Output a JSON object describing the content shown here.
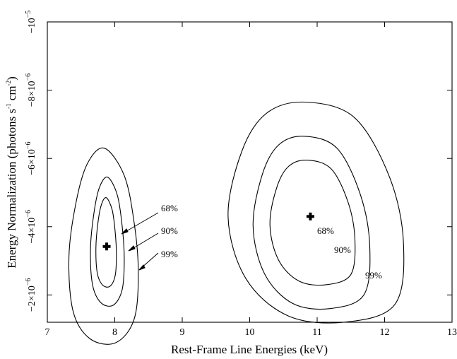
{
  "chart_data": {
    "type": "contour",
    "xlabel": "Rest-Frame Line Energies (keV)",
    "ylabel_main": "Energy Normalization (photons s",
    "ylabel_sup1": "-1",
    "ylabel_mid": " cm",
    "ylabel_sup2": "-2",
    "ylabel_end": ")",
    "xlim": [
      7,
      13
    ],
    "ylim": [
      -1.2e-06,
      -1e-05
    ],
    "x_ticks": [
      {
        "value": 7,
        "label": "7"
      },
      {
        "value": 8,
        "label": "8"
      },
      {
        "value": 9,
        "label": "9"
      },
      {
        "value": 10,
        "label": "10"
      },
      {
        "value": 11,
        "label": "11"
      },
      {
        "value": 12,
        "label": "12"
      },
      {
        "value": 13,
        "label": "13"
      }
    ],
    "y_ticks": [
      {
        "value": -2e-06,
        "mant": "−2×10",
        "exp": "−6"
      },
      {
        "value": -4e-06,
        "mant": "−4×10",
        "exp": "−6"
      },
      {
        "value": -6e-06,
        "mant": "−6×10",
        "exp": "−6"
      },
      {
        "value": -8e-06,
        "mant": "−8×10",
        "exp": "−6"
      },
      {
        "value": -1e-05,
        "mant": "−10",
        "exp": "−5"
      }
    ],
    "grid": false,
    "features": [
      {
        "name": "line-1",
        "best_fit": {
          "x": 7.88,
          "y": -3.42e-06
        },
        "contours": [
          {
            "level": "68%",
            "x_range": [
              7.72,
              8.03
            ],
            "y_range": [
              -2.25e-06,
              -4.85e-06
            ]
          },
          {
            "level": "90%",
            "x_range": [
              7.64,
              8.15
            ],
            "y_range": [
              -1.7e-06,
              -5.45e-06
            ]
          },
          {
            "level": "99%",
            "x_range": [
              7.32,
              8.37
            ],
            "y_range": [
              -6e-07,
              -6.3e-06
            ]
          }
        ]
      },
      {
        "name": "line-2",
        "best_fit": {
          "x": 10.9,
          "y": -4.3e-06
        },
        "contours": [
          {
            "level": "68%",
            "x_range": [
              10.3,
              11.56
            ],
            "y_range": [
              -2.3e-06,
              -5.95e-06
            ]
          },
          {
            "level": "90%",
            "x_range": [
              10.05,
              11.78
            ],
            "y_range": [
              -1.6e-06,
              -6.65e-06
            ]
          },
          {
            "level": "99%",
            "x_range": [
              9.68,
              12.28
            ],
            "y_range": [
              -1.2e-06,
              -7.65e-06
            ]
          }
        ]
      }
    ],
    "annotations": [
      {
        "text": "68%"
      },
      {
        "text": "90%"
      },
      {
        "text": "99%"
      },
      {
        "text": "68%"
      },
      {
        "text": "90%"
      },
      {
        "text": "99%"
      }
    ]
  }
}
